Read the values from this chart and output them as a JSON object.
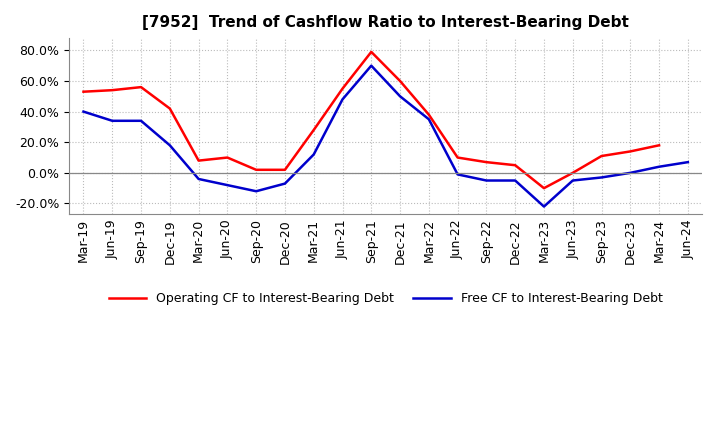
{
  "title": "[7952]  Trend of Cashflow Ratio to Interest-Bearing Debt",
  "x_labels": [
    "Mar-19",
    "Jun-19",
    "Sep-19",
    "Dec-19",
    "Mar-20",
    "Jun-20",
    "Sep-20",
    "Dec-20",
    "Mar-21",
    "Jun-21",
    "Sep-21",
    "Dec-21",
    "Mar-22",
    "Jun-22",
    "Sep-22",
    "Dec-22",
    "Mar-23",
    "Jun-23",
    "Sep-23",
    "Dec-23",
    "Mar-24",
    "Jun-24"
  ],
  "operating_cf": [
    0.53,
    0.54,
    0.56,
    0.42,
    0.08,
    0.1,
    0.02,
    0.02,
    0.28,
    0.55,
    0.79,
    0.6,
    0.38,
    0.1,
    0.07,
    0.05,
    -0.1,
    0.0,
    0.11,
    0.14,
    0.18,
    null
  ],
  "free_cf": [
    0.4,
    0.34,
    0.34,
    0.18,
    -0.04,
    -0.08,
    -0.12,
    -0.07,
    0.12,
    0.48,
    0.7,
    0.5,
    0.35,
    -0.01,
    -0.05,
    -0.05,
    -0.22,
    -0.05,
    -0.03,
    0.0,
    0.04,
    0.07
  ],
  "operating_color": "#ff0000",
  "free_color": "#0000cc",
  "background_color": "#ffffff",
  "grid_color": "#bbbbbb",
  "ylim": [
    -0.27,
    0.88
  ],
  "yticks": [
    -0.2,
    0.0,
    0.2,
    0.4,
    0.6,
    0.8
  ],
  "legend_operating": "Operating CF to Interest-Bearing Debt",
  "legend_free": "Free CF to Interest-Bearing Debt",
  "title_fontsize": 11,
  "tick_fontsize": 9,
  "legend_fontsize": 9
}
